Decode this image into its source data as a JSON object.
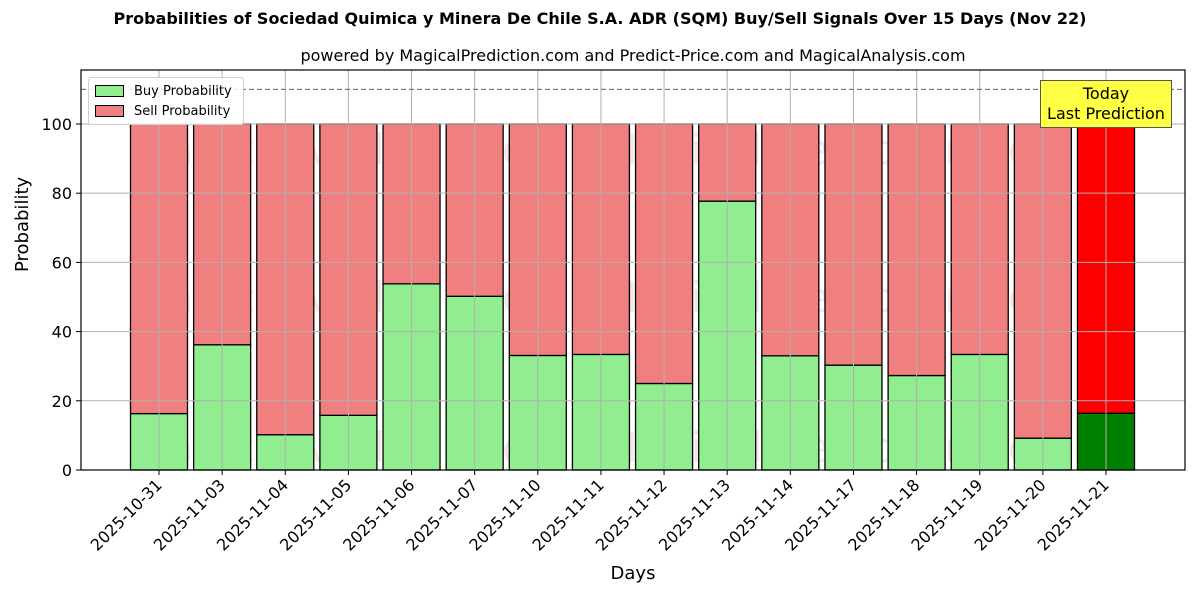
{
  "chart_data": {
    "type": "bar",
    "stacked": true,
    "title": "Probabilities of Sociedad Quimica y Minera De Chile S.A. ADR (SQM) Buy/Sell Signals Over 15 Days (Nov 22)",
    "subtitle": "powered by MagicalPrediction.com and Predict-Price.com and MagicalAnalysis.com",
    "xlabel": "Days",
    "ylabel": "Probability",
    "ylim": [
      0,
      115.6
    ],
    "yticks": [
      0,
      20,
      40,
      60,
      80,
      100
    ],
    "grid": true,
    "reference_line": {
      "y": 110,
      "style": "dashed"
    },
    "legend_position": "upper left",
    "categories": [
      "2025-10-31",
      "2025-11-03",
      "2025-11-04",
      "2025-11-05",
      "2025-11-06",
      "2025-11-07",
      "2025-11-10",
      "2025-11-11",
      "2025-11-12",
      "2025-11-13",
      "2025-11-14",
      "2025-11-17",
      "2025-11-18",
      "2025-11-19",
      "2025-11-20",
      "2025-11-21"
    ],
    "series": [
      {
        "name": "Buy Probability",
        "color": "#90ee90",
        "values": [
          16.3,
          36.2,
          10.2,
          15.8,
          53.8,
          50.2,
          33.1,
          33.4,
          25.0,
          77.7,
          33.0,
          30.3,
          27.3,
          33.4,
          9.2,
          16.4
        ]
      },
      {
        "name": "Sell Probability",
        "color": "#f08080",
        "values": [
          83.7,
          63.8,
          89.8,
          84.2,
          46.2,
          49.8,
          66.9,
          66.6,
          75.0,
          22.3,
          67.0,
          69.7,
          72.7,
          66.6,
          90.8,
          83.6
        ]
      }
    ],
    "highlight": {
      "index": 15,
      "buy_color": "#008000",
      "sell_color": "#ff0000"
    },
    "annotation": {
      "line1": "Today",
      "line2": "Last Prediction",
      "background": "#ffff44"
    },
    "watermarks": [
      "MagicalAnalysis.com",
      "MagicalPrediction.com"
    ]
  }
}
